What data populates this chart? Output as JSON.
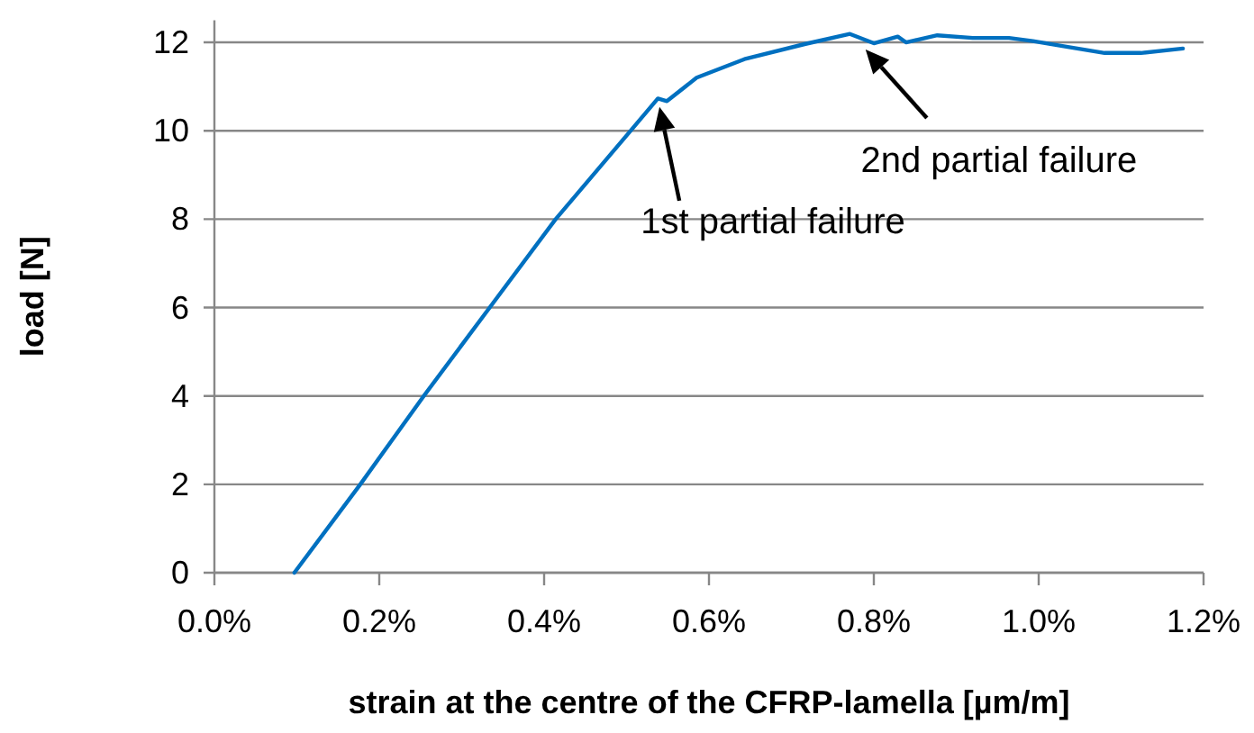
{
  "chart_data": {
    "type": "line",
    "xlabel": "strain at the centre of the CFRP-lamella [µm/m]",
    "ylabel": "load [N]",
    "xlim": [
      0,
      1.2
    ],
    "xticks": [
      {
        "value": 0,
        "label": "0.0%"
      },
      {
        "value": 0.2,
        "label": "0.2%"
      },
      {
        "value": 0.4,
        "label": "0.4%"
      },
      {
        "value": 0.6,
        "label": "0.6%"
      },
      {
        "value": 0.8,
        "label": "0.8%"
      },
      {
        "value": 1.0,
        "label": "1.0%"
      },
      {
        "value": 1.2,
        "label": "1.2%"
      }
    ],
    "ylim": [
      0,
      12.5
    ],
    "yticks": [
      0,
      2,
      4,
      6,
      8,
      10,
      12
    ],
    "grid": "y",
    "marker": "none",
    "line_style": "solid",
    "series": [
      {
        "color": "#0070c0",
        "x": [
          0.097,
          0.177,
          0.254,
          0.334,
          0.414,
          0.505,
          0.538,
          0.549,
          0.585,
          0.643,
          0.716,
          0.771,
          0.8,
          0.829,
          0.839,
          0.877,
          0.92,
          0.964,
          0.993,
          1.037,
          1.08,
          1.124,
          1.175
        ],
        "values": [
          0,
          2,
          4,
          6,
          8,
          10,
          10.73,
          10.67,
          11.2,
          11.62,
          11.96,
          12.19,
          11.98,
          12.13,
          12.0,
          12.16,
          12.1,
          12.1,
          12.03,
          11.89,
          11.76,
          11.76,
          11.86
        ]
      }
    ],
    "annotations": [
      {
        "text": "1st partial failure",
        "x": 0.54,
        "y": 10.7
      },
      {
        "text": "2nd partial failure",
        "x": 0.79,
        "y": 12.0
      }
    ]
  }
}
